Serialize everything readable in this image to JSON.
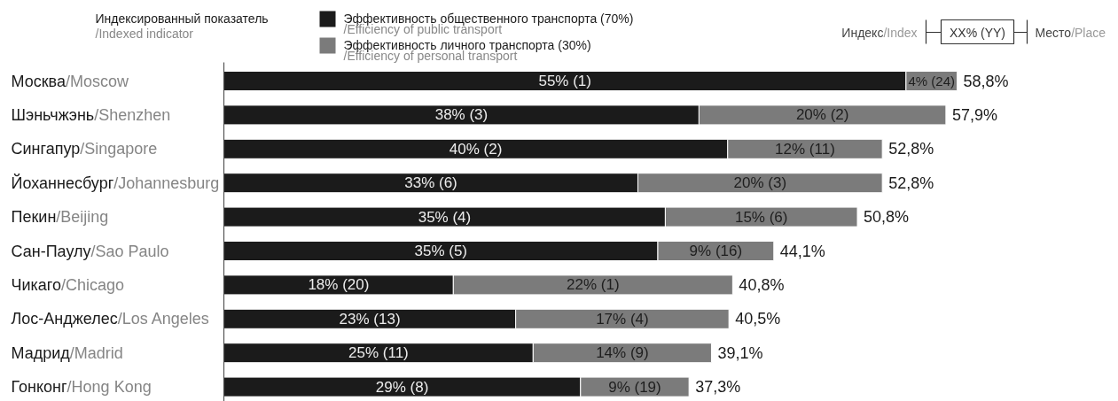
{
  "chart_data": {
    "type": "bar",
    "orientation": "horizontal",
    "stacked": true,
    "title": "Индексированный показатель\n/Indexed indicator",
    "categories": [
      "Москва/Moscow",
      "Шэньчжэнь/Shenzhen",
      "Сингапур/Singapore",
      "Йоханнесбург/Johannesburg",
      "Пекин/Beijing",
      "Сан-Паулу/Sao Paulo",
      "Чикаго/Chicago",
      "Лос-Анджелес/Los Angeles",
      "Мадрид/Madrid",
      "Гонконг/Hong Kong"
    ],
    "series": [
      {
        "name": "Эффективность общественного транспорта (70%)\n/Efficiency of public transport",
        "color": "#1b1b1b",
        "values": [
          54.7,
          38.1,
          40.4,
          33.2,
          35.4,
          34.8,
          18.4,
          23.4,
          24.8,
          28.6
        ],
        "value_labels": [
          "55% (1)",
          "38% (3)",
          "40% (2)",
          "33% (6)",
          "35% (4)",
          "35% (5)",
          "18% (20)",
          "23% (13)",
          "25% (11)",
          "29% (8)"
        ]
      },
      {
        "name": "Эффективность личного транспорта (30%)\n/Efficiency of personal transport",
        "color": "#7b7b7b",
        "values": [
          4.1,
          19.8,
          12.4,
          19.6,
          15.4,
          9.3,
          22.4,
          17.1,
          14.3,
          8.7
        ],
        "value_labels": [
          "4% (24)",
          "20% (2)",
          "12% (11)",
          "20% (3)",
          "15% (6)",
          "9% (16)",
          "22% (1)",
          "17% (4)",
          "14% (9)",
          "9% (19)"
        ]
      }
    ],
    "totals": [
      "58,8%",
      "57,9%",
      "52,8%",
      "52,8%",
      "50,8%",
      "44,1%",
      "40,8%",
      "40,5%",
      "39,1%",
      "37,3%"
    ],
    "legend": "top",
    "annotations": [
      "Индекс/Index",
      "XX% (YY)",
      "Место/Place"
    ]
  }
}
